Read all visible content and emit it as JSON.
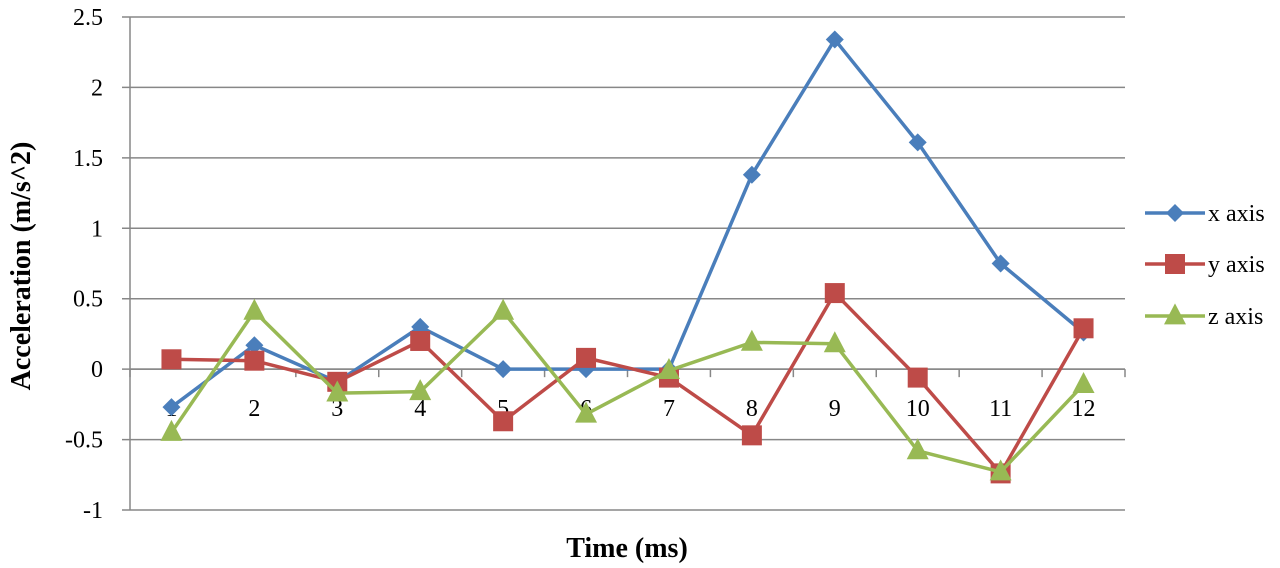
{
  "chart_data": {
    "type": "line",
    "title": "",
    "xlabel": "Time (ms)",
    "ylabel": "Acceleration (m/s^2)",
    "categories": [
      "1",
      "2",
      "3",
      "4",
      "5",
      "6",
      "7",
      "8",
      "9",
      "10",
      "11",
      "12"
    ],
    "y_ticks": [
      "2.5",
      "2",
      "1.5",
      "1",
      "0.5",
      "0",
      "-0.5",
      "-1"
    ],
    "ylim": [
      -1,
      2.5
    ],
    "grid": true,
    "legend_position": "right",
    "series": [
      {
        "name": "x axis",
        "color": "#4a7ebb",
        "marker": "diamond",
        "values": [
          -0.27,
          0.17,
          -0.09,
          0.3,
          0.0,
          0.0,
          0.0,
          1.38,
          2.34,
          1.61,
          0.75,
          0.26
        ]
      },
      {
        "name": "y axis",
        "color": "#be4b48",
        "marker": "square",
        "values": [
          0.07,
          0.06,
          -0.09,
          0.2,
          -0.37,
          0.08,
          -0.06,
          -0.47,
          0.54,
          -0.06,
          -0.74,
          0.29
        ]
      },
      {
        "name": "z axis",
        "color": "#98b954",
        "marker": "triangle",
        "values": [
          -0.45,
          0.41,
          -0.17,
          -0.16,
          0.41,
          -0.32,
          -0.01,
          0.19,
          0.18,
          -0.58,
          -0.73,
          -0.11
        ]
      }
    ]
  }
}
